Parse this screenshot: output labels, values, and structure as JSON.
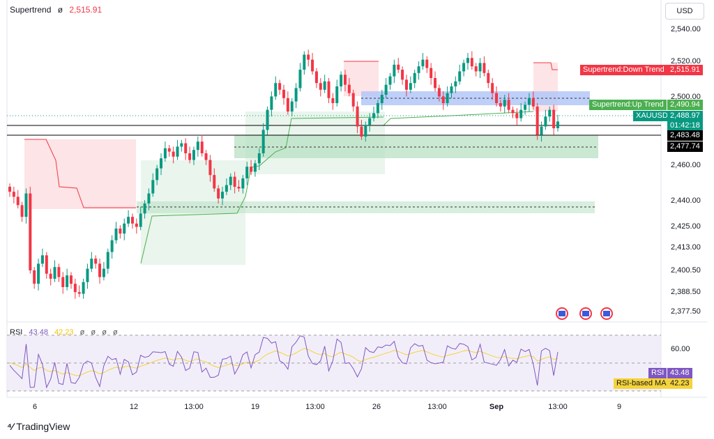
{
  "legend": {
    "name": "Supertrend",
    "symbol": "ø",
    "value": "2,515.91"
  },
  "currency_button": "USD",
  "price_axis": {
    "ticks": [
      "2,540.00",
      "2,520.00",
      "2,500.00",
      "2,460.00",
      "2,440.00",
      "2,425.00",
      "2,413.00",
      "2,400.50",
      "2,388.50",
      "2,377.50"
    ]
  },
  "rsi_axis": {
    "ticks": [
      "60.00"
    ]
  },
  "price_tags": {
    "down_label": "Supertrend:Down Trend",
    "down_value": "2,515.91",
    "up_label": "Supertrend:Up Trend",
    "up_value": "2,490.94",
    "symbol": "XAUUSD",
    "symbol_price": "2,488.97",
    "countdown": "01:42:18",
    "level1": "2,483.48",
    "level2": "2,477.74",
    "rsi_label": "RSI",
    "rsi_value": "43.48",
    "rsima_label": "RSI-based MA",
    "rsima_value": "42.23"
  },
  "rsi_legend": {
    "name": "RSI",
    "rsi": "43.48",
    "ma": "42.23",
    "z1": "ø",
    "z2": "ø",
    "z3": "ø",
    "z4": "ø"
  },
  "x_axis": {
    "labels": [
      "6",
      "12",
      "13:00",
      "19",
      "13:00",
      "26",
      "13:00",
      "Sep",
      "13:00",
      "9"
    ]
  },
  "brand": "TradingView",
  "colors": {
    "up": "#089981",
    "down": "#f23645",
    "up_fill": "#e9f5ed",
    "down_fill": "#fde4e6",
    "zone_green": "#b8e0c3",
    "zone_blue": "#b3c7f7",
    "rsi_line": "#7e57c2",
    "rsi_ma": "#f5d33a"
  },
  "chart_data": {
    "type": "candlestick",
    "symbol": "XAUUSD",
    "ylim": [
      2370,
      2550
    ],
    "supertrend_last": 2515.91,
    "rsi_last": 43.48,
    "rsi_ma_last": 42.23,
    "closes": [
      2447,
      2444,
      2439,
      2432,
      2446,
      2400,
      2392,
      2404,
      2409,
      2398,
      2395,
      2402,
      2396,
      2390,
      2397,
      2392,
      2387,
      2386,
      2393,
      2401,
      2407,
      2404,
      2396,
      2401,
      2411,
      2418,
      2425,
      2422,
      2428,
      2432,
      2428,
      2426,
      2434,
      2440,
      2446,
      2454,
      2461,
      2467,
      2473,
      2471,
      2468,
      2474,
      2476,
      2470,
      2466,
      2472,
      2477,
      2470,
      2466,
      2457,
      2449,
      2443,
      2447,
      2451,
      2456,
      2450,
      2449,
      2455,
      2462,
      2459,
      2464,
      2470,
      2484,
      2496,
      2504,
      2512,
      2508,
      2503,
      2495,
      2501,
      2509,
      2520,
      2529,
      2526,
      2519,
      2512,
      2508,
      2513,
      2503,
      2500,
      2510,
      2517,
      2511,
      2506,
      2498,
      2486,
      2480,
      2487,
      2491,
      2494,
      2500,
      2505,
      2511,
      2516,
      2523,
      2520,
      2514,
      2508,
      2512,
      2518,
      2522,
      2526,
      2521,
      2515,
      2509,
      2504,
      2500,
      2506,
      2510,
      2513,
      2519,
      2524,
      2527,
      2522,
      2519,
      2524,
      2518,
      2512,
      2506,
      2500,
      2498,
      2502,
      2496,
      2494,
      2491,
      2496,
      2499,
      2503,
      2498,
      2481,
      2486,
      2492,
      2496,
      2485,
      2489
    ]
  }
}
